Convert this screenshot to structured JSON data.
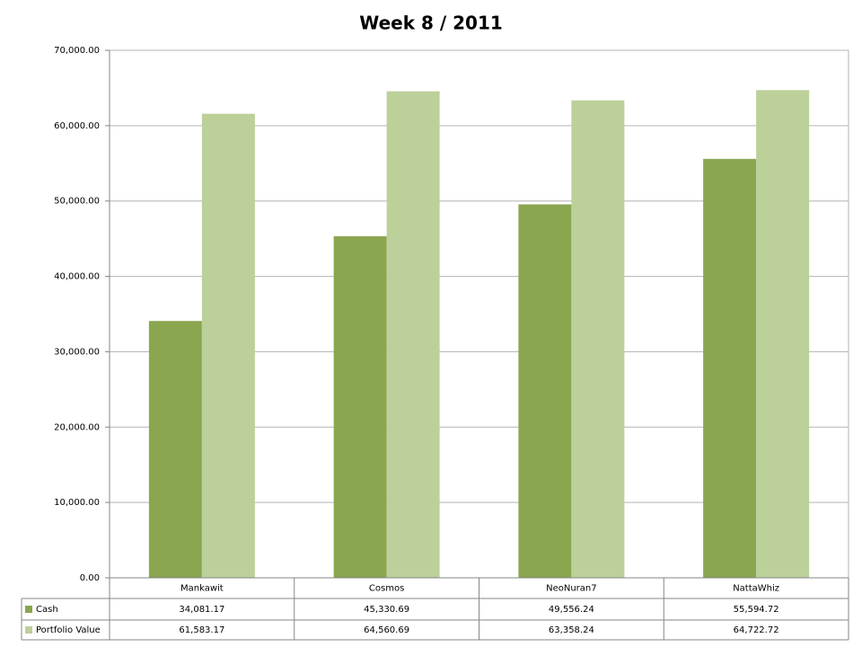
{
  "chart_data": {
    "type": "bar",
    "title": "Week 8 / 2011",
    "categories": [
      "Mankawit",
      "Cosmos",
      "NeoNuran7",
      "NattaWhiz"
    ],
    "series": [
      {
        "name": "Cash",
        "color": "#8aa64f",
        "values": [
          34081.17,
          45330.69,
          49556.24,
          55594.72
        ],
        "value_labels": [
          "34,081.17",
          "45,330.69",
          "49,556.24",
          "55,594.72"
        ]
      },
      {
        "name": "Portfolio Value",
        "color": "#bcd09a",
        "values": [
          61583.17,
          64560.69,
          63358.24,
          64722.72
        ],
        "value_labels": [
          "61,583.17",
          "64,560.69",
          "63,358.24",
          "64,722.72"
        ]
      }
    ],
    "ylim": [
      0,
      70000
    ],
    "yticks": [
      {
        "value": 0,
        "label": "0.00"
      },
      {
        "value": 10000,
        "label": "10,000.00"
      },
      {
        "value": 20000,
        "label": "20,000.00"
      },
      {
        "value": 30000,
        "label": "30,000.00"
      },
      {
        "value": 40000,
        "label": "40,000.00"
      },
      {
        "value": 50000,
        "label": "50,000.00"
      },
      {
        "value": 60000,
        "label": "60,000.00"
      },
      {
        "value": 70000,
        "label": "70,000.00"
      }
    ],
    "grid": true
  }
}
